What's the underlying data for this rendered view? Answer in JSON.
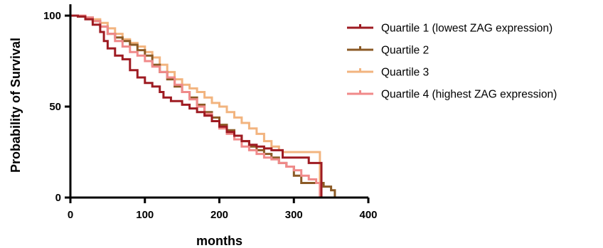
{
  "chart_data": {
    "type": "line",
    "xlabel": "months",
    "ylabel": "Probability of Survival",
    "xlim": [
      0,
      400
    ],
    "ylim": [
      0,
      100
    ],
    "x_ticks": [
      "0",
      "100",
      "200",
      "300",
      "400"
    ],
    "y_ticks": [
      "0",
      "50",
      "100"
    ],
    "grid": false,
    "legend_position": "top-right",
    "series": [
      {
        "name": "Quartile 1 (lowest ZAG expression)",
        "color": "#9e1b22",
        "points": [
          [
            0,
            100
          ],
          [
            10,
            99.5
          ],
          [
            20,
            98
          ],
          [
            30,
            95
          ],
          [
            40,
            91
          ],
          [
            45,
            86
          ],
          [
            50,
            82
          ],
          [
            60,
            78
          ],
          [
            70,
            76
          ],
          [
            80,
            70
          ],
          [
            90,
            66
          ],
          [
            100,
            63
          ],
          [
            110,
            61
          ],
          [
            120,
            58
          ],
          [
            125,
            55
          ],
          [
            135,
            53
          ],
          [
            150,
            51
          ],
          [
            160,
            49
          ],
          [
            170,
            47
          ],
          [
            180,
            45
          ],
          [
            190,
            42
          ],
          [
            200,
            39
          ],
          [
            210,
            36
          ],
          [
            220,
            34
          ],
          [
            230,
            31
          ],
          [
            240,
            29
          ],
          [
            250,
            28
          ],
          [
            260,
            27
          ],
          [
            270,
            26
          ],
          [
            285,
            24
          ],
          [
            285,
            22
          ],
          [
            320,
            22
          ],
          [
            320,
            19
          ],
          [
            337,
            19
          ],
          [
            337,
            0
          ]
        ]
      },
      {
        "name": "Quartile 2",
        "color": "#8b5a26",
        "points": [
          [
            0,
            100
          ],
          [
            10,
            99.5
          ],
          [
            20,
            99
          ],
          [
            30,
            97
          ],
          [
            40,
            94
          ],
          [
            50,
            90
          ],
          [
            60,
            88
          ],
          [
            70,
            86
          ],
          [
            80,
            84
          ],
          [
            90,
            81
          ],
          [
            100,
            78
          ],
          [
            110,
            73
          ],
          [
            120,
            69
          ],
          [
            130,
            65
          ],
          [
            140,
            61
          ],
          [
            150,
            58
          ],
          [
            160,
            55
          ],
          [
            170,
            51
          ],
          [
            180,
            47
          ],
          [
            190,
            44
          ],
          [
            200,
            40
          ],
          [
            210,
            37
          ],
          [
            220,
            34
          ],
          [
            230,
            31
          ],
          [
            240,
            28
          ],
          [
            250,
            26
          ],
          [
            260,
            24
          ],
          [
            270,
            22
          ],
          [
            280,
            19
          ],
          [
            290,
            17
          ],
          [
            300,
            14
          ],
          [
            300,
            12
          ],
          [
            310,
            12
          ],
          [
            310,
            8
          ],
          [
            335,
            8
          ],
          [
            340,
            6
          ],
          [
            350,
            4
          ],
          [
            355,
            0
          ]
        ]
      },
      {
        "name": "Quartile 3",
        "color": "#f2b47f",
        "points": [
          [
            0,
            100
          ],
          [
            10,
            100
          ],
          [
            20,
            99
          ],
          [
            30,
            98
          ],
          [
            40,
            96
          ],
          [
            50,
            93
          ],
          [
            60,
            90
          ],
          [
            70,
            87
          ],
          [
            80,
            85
          ],
          [
            90,
            83
          ],
          [
            100,
            80
          ],
          [
            110,
            77
          ],
          [
            120,
            73
          ],
          [
            130,
            69
          ],
          [
            140,
            65
          ],
          [
            150,
            62
          ],
          [
            160,
            60
          ],
          [
            170,
            58
          ],
          [
            180,
            55
          ],
          [
            190,
            52
          ],
          [
            200,
            50
          ],
          [
            210,
            47
          ],
          [
            220,
            44
          ],
          [
            230,
            41
          ],
          [
            240,
            38
          ],
          [
            250,
            35
          ],
          [
            260,
            31
          ],
          [
            270,
            28
          ],
          [
            280,
            26
          ],
          [
            285,
            25
          ],
          [
            335,
            25
          ],
          [
            335,
            0
          ]
        ]
      },
      {
        "name": "Quartile 4 (highest ZAG expression)",
        "color": "#f08a8a",
        "points": [
          [
            0,
            100
          ],
          [
            10,
            100
          ],
          [
            20,
            99
          ],
          [
            30,
            97
          ],
          [
            40,
            94
          ],
          [
            50,
            90
          ],
          [
            60,
            86
          ],
          [
            70,
            83
          ],
          [
            80,
            80
          ],
          [
            90,
            78
          ],
          [
            100,
            75
          ],
          [
            110,
            72
          ],
          [
            120,
            69
          ],
          [
            130,
            66
          ],
          [
            140,
            62
          ],
          [
            150,
            58
          ],
          [
            160,
            54
          ],
          [
            170,
            50
          ],
          [
            180,
            46
          ],
          [
            190,
            42
          ],
          [
            200,
            38
          ],
          [
            210,
            35
          ],
          [
            220,
            32
          ],
          [
            230,
            28
          ],
          [
            240,
            26
          ],
          [
            250,
            24
          ],
          [
            260,
            22
          ],
          [
            270,
            21
          ],
          [
            280,
            19
          ],
          [
            290,
            17
          ],
          [
            300,
            15
          ],
          [
            310,
            12
          ],
          [
            320,
            10
          ],
          [
            330,
            8
          ],
          [
            335,
            0
          ]
        ]
      }
    ]
  }
}
